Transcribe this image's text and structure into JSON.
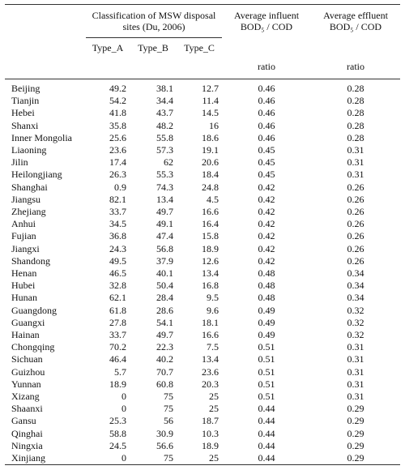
{
  "table": {
    "group_header": "Classification of MSW disposal sites (Du, 2006)",
    "influent_header": "Average influent BOD₅ / COD",
    "effluent_header": "Average effluent BOD₅ / COD",
    "type_headers": [
      "Type_A",
      "Type_B",
      "Type_C"
    ],
    "unit_headers": [
      "ratio",
      "ratio"
    ],
    "rows": [
      [
        "Beijing",
        "49.2",
        "38.1",
        "12.7",
        "0.46",
        "0.28"
      ],
      [
        "Tianjin",
        "54.2",
        "34.4",
        "11.4",
        "0.46",
        "0.28"
      ],
      [
        "Hebei",
        "41.8",
        "43.7",
        "14.5",
        "0.46",
        "0.28"
      ],
      [
        "Shanxi",
        "35.8",
        "48.2",
        "16",
        "0.46",
        "0.28"
      ],
      [
        "Inner Mongolia",
        "25.6",
        "55.8",
        "18.6",
        "0.46",
        "0.28"
      ],
      [
        "Liaoning",
        "23.6",
        "57.3",
        "19.1",
        "0.45",
        "0.31"
      ],
      [
        "Jilin",
        "17.4",
        "62",
        "20.6",
        "0.45",
        "0.31"
      ],
      [
        "Heilongjiang",
        "26.3",
        "55.3",
        "18.4",
        "0.45",
        "0.31"
      ],
      [
        "Shanghai",
        "0.9",
        "74.3",
        "24.8",
        "0.42",
        "0.26"
      ],
      [
        "Jiangsu",
        "82.1",
        "13.4",
        "4.5",
        "0.42",
        "0.26"
      ],
      [
        "Zhejiang",
        "33.7",
        "49.7",
        "16.6",
        "0.42",
        "0.26"
      ],
      [
        "Anhui",
        "34.5",
        "49.1",
        "16.4",
        "0.42",
        "0.26"
      ],
      [
        "Fujian",
        "36.8",
        "47.4",
        "15.8",
        "0.42",
        "0.26"
      ],
      [
        "Jiangxi",
        "24.3",
        "56.8",
        "18.9",
        "0.42",
        "0.26"
      ],
      [
        "Shandong",
        "49.5",
        "37.9",
        "12.6",
        "0.42",
        "0.26"
      ],
      [
        "Henan",
        "46.5",
        "40.1",
        "13.4",
        "0.48",
        "0.34"
      ],
      [
        "Hubei",
        "32.8",
        "50.4",
        "16.8",
        "0.48",
        "0.34"
      ],
      [
        "Hunan",
        "62.1",
        "28.4",
        "9.5",
        "0.48",
        "0.34"
      ],
      [
        "Guangdong",
        "61.8",
        "28.6",
        "9.6",
        "0.49",
        "0.32"
      ],
      [
        "Guangxi",
        "27.8",
        "54.1",
        "18.1",
        "0.49",
        "0.32"
      ],
      [
        "Hainan",
        "33.7",
        "49.7",
        "16.6",
        "0.49",
        "0.32"
      ],
      [
        "Chongqing",
        "70.2",
        "22.3",
        "7.5",
        "0.51",
        "0.31"
      ],
      [
        "Sichuan",
        "46.4",
        "40.2",
        "13.4",
        "0.51",
        "0.31"
      ],
      [
        "Guizhou",
        "5.7",
        "70.7",
        "23.6",
        "0.51",
        "0.31"
      ],
      [
        "Yunnan",
        "18.9",
        "60.8",
        "20.3",
        "0.51",
        "0.31"
      ],
      [
        "Xizang",
        "0",
        "75",
        "25",
        "0.51",
        "0.31"
      ],
      [
        "Shaanxi",
        "0",
        "75",
        "25",
        "0.44",
        "0.29"
      ],
      [
        "Gansu",
        "25.3",
        "56",
        "18.7",
        "0.44",
        "0.29"
      ],
      [
        "Qinghai",
        "58.8",
        "30.9",
        "10.3",
        "0.44",
        "0.29"
      ],
      [
        "Ningxia",
        "24.5",
        "56.6",
        "18.9",
        "0.44",
        "0.29"
      ],
      [
        "Xinjiang",
        "0",
        "75",
        "25",
        "0.44",
        "0.29"
      ]
    ]
  }
}
